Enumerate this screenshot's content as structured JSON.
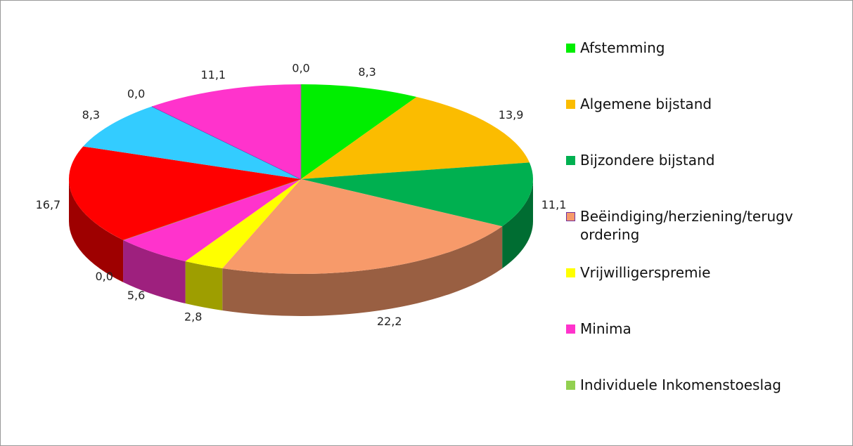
{
  "chart_data": {
    "type": "pie",
    "categories": [
      "Afstemming",
      "Algemene bijstand",
      "Bijzondere bijstand",
      "Beëindiging/herziening/terugvordering",
      "Vrijwilligerspremie",
      "Minima",
      "Individuele Inkomenstoeslag",
      null,
      null,
      null,
      null,
      null
    ],
    "values": [
      8.3,
      13.9,
      11.1,
      22.2,
      2.8,
      5.6,
      0,
      16.7,
      8.3,
      0,
      11.1,
      0
    ],
    "value_labels": [
      "8,3",
      "13,9",
      "11,1",
      "22,2",
      "2,8",
      "5,6",
      "0,0",
      "16,7",
      "8,3",
      "0,0",
      "11,1",
      "0,0"
    ],
    "colors": [
      "#00ee00",
      "#fbbc00",
      "#00b050",
      "#f79a6a",
      "#ffff00",
      "#ff33cc",
      "#92d050",
      "#ff0000",
      "#33ccff",
      "#7030a0",
      "#ff33cc",
      "#808080"
    ]
  }
}
